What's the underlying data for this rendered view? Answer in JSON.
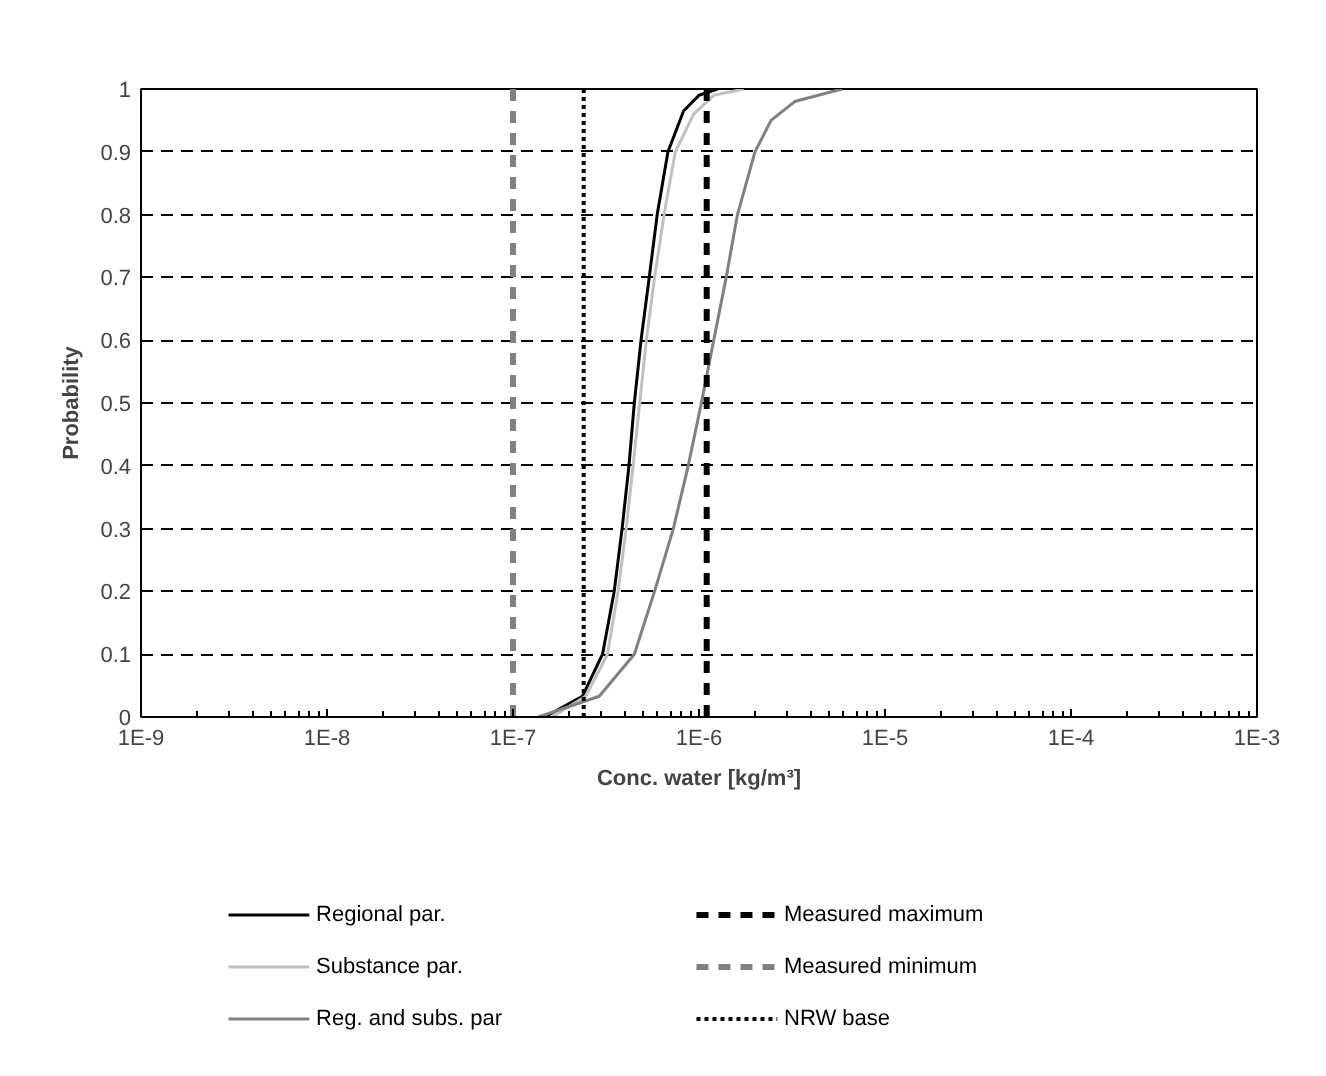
{
  "chart_data": {
    "type": "line",
    "xlabel": "Conc. water [kg/m³]",
    "ylabel": "Probability",
    "log": "x",
    "xlim": [
      1e-09,
      0.001
    ],
    "xticks": [
      {
        "value": 1e-09,
        "label": "1E-9"
      },
      {
        "value": 1e-08,
        "label": "1E-8"
      },
      {
        "value": 1e-07,
        "label": "1E-7"
      },
      {
        "value": 1e-06,
        "label": "1E-6"
      },
      {
        "value": 1e-05,
        "label": "1E-5"
      },
      {
        "value": 0.0001,
        "label": "1E-4"
      },
      {
        "value": 0.001,
        "label": "1E-3"
      }
    ],
    "ylim": [
      0,
      1
    ],
    "yticks": [
      0,
      0.1,
      0.2,
      0.3,
      0.4,
      0.5,
      0.6,
      0.7,
      0.8,
      0.9,
      1
    ],
    "grid": "y",
    "legend": "bottom",
    "line_style": "solid",
    "marker": "none",
    "series": [
      {
        "name": "Regional par.",
        "color": "#000000",
        "x": [
          1.48e-07,
          2.36e-07,
          3.03e-07,
          3.5e-07,
          3.86e-07,
          4.2e-07,
          4.49e-07,
          4.88e-07,
          5.4e-07,
          5.96e-07,
          6.81e-07,
          8.26e-07,
          1e-06,
          1.26e-06
        ],
        "values": [
          0,
          0.033,
          0.1,
          0.2,
          0.3,
          0.4,
          0.5,
          0.6,
          0.7,
          0.8,
          0.9,
          0.965,
          0.99,
          1
        ]
      },
      {
        "name": "Substance par.",
        "color": "#c0c0c0",
        "x": [
          1.62e-07,
          2.46e-07,
          3.22e-07,
          3.67e-07,
          4.06e-07,
          4.42e-07,
          4.8e-07,
          5.21e-07,
          5.77e-07,
          6.49e-07,
          7.46e-07,
          9.35e-07,
          1.2e-06,
          1.74e-06
        ],
        "values": [
          0,
          0.033,
          0.1,
          0.2,
          0.3,
          0.4,
          0.5,
          0.6,
          0.7,
          0.8,
          0.9,
          0.96,
          0.99,
          1
        ]
      },
      {
        "name": "Reg. and subs. par",
        "color": "#808080",
        "x": [
          1.37e-07,
          2.91e-07,
          4.49e-07,
          5.77e-07,
          7.28e-07,
          8.75e-07,
          1.03e-06,
          1.2e-06,
          1.4e-06,
          1.61e-06,
          2e-06,
          2.44e-06,
          3.27e-06,
          5.86e-06
        ],
        "values": [
          0,
          0.033,
          0.1,
          0.2,
          0.3,
          0.4,
          0.5,
          0.6,
          0.7,
          0.8,
          0.9,
          0.95,
          0.98,
          1
        ]
      }
    ],
    "ref_lines": [
      {
        "axis": "x",
        "value": 1.1e-06,
        "label": "Measured maximum",
        "color": "#000000",
        "line_style": "dashed"
      },
      {
        "axis": "x",
        "value": 1e-07,
        "label": "Measured minimum",
        "color": "#808080",
        "line_style": "dashed"
      },
      {
        "axis": "x",
        "value": 2.4e-07,
        "label": "NRW base",
        "color": "#000000",
        "line_style": "dotted"
      }
    ]
  }
}
